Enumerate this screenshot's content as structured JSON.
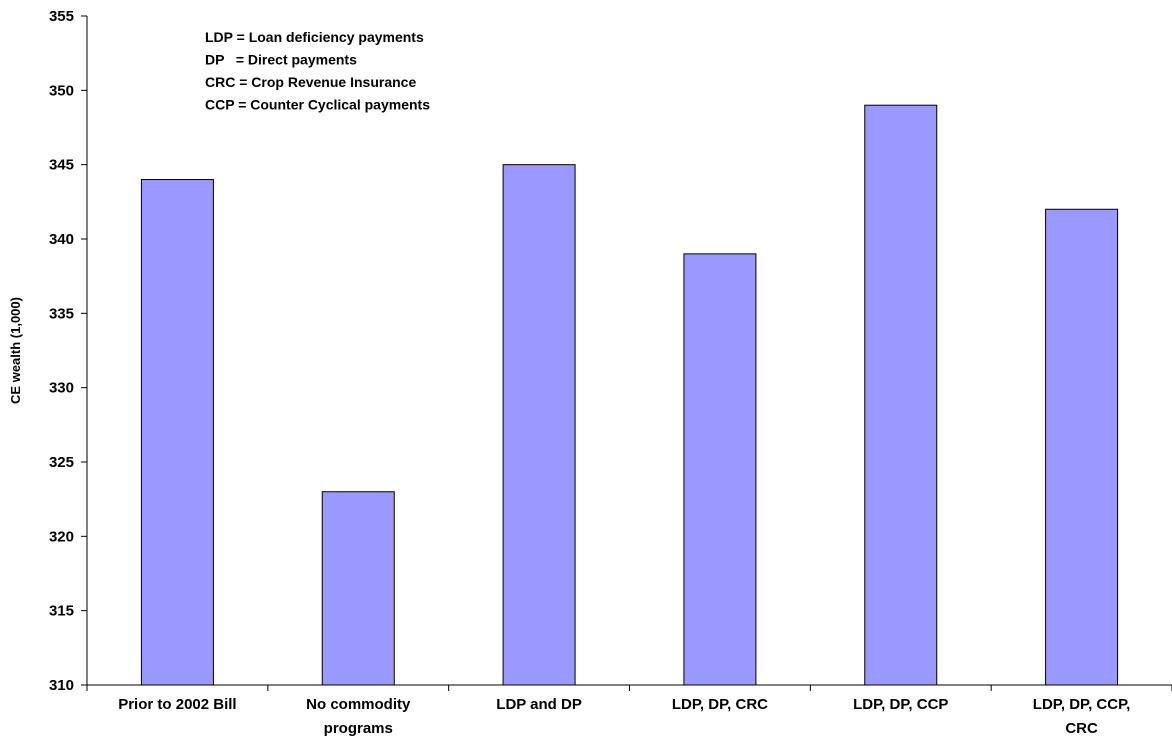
{
  "chart_data": {
    "type": "bar",
    "categories": [
      [
        "Prior to 2002 Bill"
      ],
      [
        "No commodity",
        "programs"
      ],
      [
        "LDP and DP"
      ],
      [
        "LDP, DP, CRC"
      ],
      [
        "LDP, DP, CCP"
      ],
      [
        "LDP, DP, CCP,",
        "CRC"
      ]
    ],
    "values": [
      344,
      323,
      345,
      339,
      349,
      342
    ],
    "ylabel": "CE wealth (1,000)",
    "ylim": [
      310,
      355
    ],
    "yticks": [
      310,
      315,
      320,
      325,
      330,
      335,
      340,
      345,
      350,
      355
    ],
    "annotations": [
      "LDP = Loan deficiency payments",
      "DP   = Direct payments",
      "CRC = Crop Revenue Insurance",
      "CCP = Counter Cyclical payments"
    ],
    "bar_color": "#9999ff",
    "bar_border": "#000000",
    "grid": false
  }
}
